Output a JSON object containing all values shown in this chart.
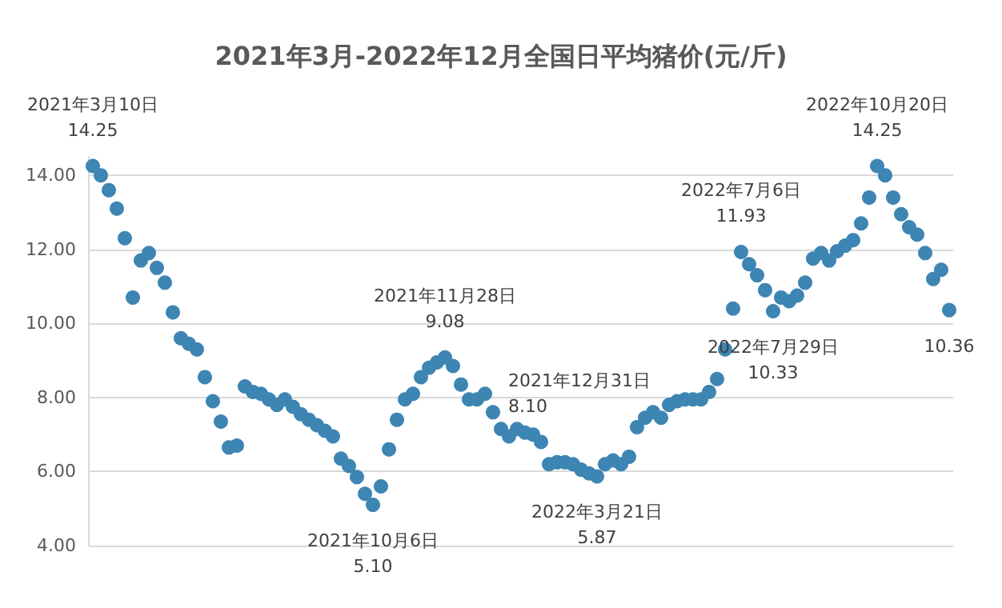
{
  "chart_data": {
    "type": "scatter",
    "title": "2021年3月-2022年12月全国日平均猪价(元/斤)",
    "categories": [
      null,
      null,
      null,
      null,
      null,
      null,
      null,
      null,
      null,
      null,
      null,
      null,
      null,
      null,
      null,
      null,
      null,
      null,
      null,
      null,
      null,
      null,
      null,
      null,
      null,
      null,
      null,
      null,
      null,
      null,
      null,
      null,
      null,
      null,
      null,
      null,
      null,
      null,
      null,
      null,
      null,
      null,
      null,
      null,
      null,
      null,
      null,
      null,
      null,
      null,
      null,
      null,
      null,
      null,
      null,
      null,
      null,
      null,
      null,
      null,
      null,
      null,
      null,
      null,
      null,
      null,
      null,
      null,
      null,
      null,
      null,
      null,
      null,
      null,
      null,
      null,
      null,
      null,
      null,
      null,
      null,
      null,
      null,
      null,
      null,
      null,
      null,
      null,
      null,
      null,
      null,
      null,
      null,
      null,
      null,
      null,
      null,
      null,
      null,
      null,
      null,
      null,
      null,
      null,
      null,
      null,
      null,
      null
    ],
    "series": [
      {
        "color": "#3d85b3",
        "values": [
          14.25,
          14.0,
          13.6,
          13.1,
          12.3,
          10.7,
          11.7,
          11.9,
          11.5,
          11.1,
          10.3,
          9.6,
          9.45,
          9.3,
          8.55,
          7.9,
          7.35,
          6.65,
          6.7,
          8.3,
          8.15,
          8.1,
          7.95,
          7.8,
          7.95,
          7.75,
          7.55,
          7.4,
          7.25,
          7.1,
          6.95,
          6.35,
          6.15,
          5.85,
          5.4,
          5.1,
          5.6,
          6.6,
          7.4,
          7.95,
          8.1,
          8.55,
          8.8,
          8.95,
          9.08,
          8.85,
          8.35,
          7.95,
          7.95,
          8.1,
          7.6,
          7.15,
          6.95,
          7.15,
          7.05,
          7.0,
          6.8,
          6.2,
          6.25,
          6.25,
          6.2,
          6.05,
          5.95,
          5.87,
          6.2,
          6.3,
          6.2,
          6.4,
          7.2,
          7.45,
          7.6,
          7.45,
          7.8,
          7.9,
          7.95,
          7.95,
          7.95,
          8.15,
          8.5,
          9.3,
          10.4,
          11.93,
          11.6,
          11.3,
          10.9,
          10.33,
          10.7,
          10.6,
          10.75,
          11.1,
          11.75,
          11.9,
          11.7,
          11.95,
          12.1,
          12.25,
          12.7,
          13.4,
          14.25,
          14.0,
          13.4,
          12.95,
          12.6,
          12.4,
          11.9,
          11.2,
          11.45,
          10.36
        ],
        "value_labels": [
          "2021年3月10日\n14.25",
          null,
          null,
          null,
          null,
          null,
          null,
          null,
          null,
          null,
          null,
          null,
          null,
          null,
          null,
          null,
          null,
          null,
          null,
          null,
          null,
          null,
          null,
          null,
          null,
          null,
          null,
          null,
          null,
          null,
          null,
          null,
          null,
          null,
          null,
          "2021年10月6日\n5.10",
          null,
          null,
          null,
          null,
          null,
          null,
          null,
          null,
          "2021年11月28日\n9.08",
          null,
          null,
          null,
          null,
          "2021年12月31日\n8.10",
          null,
          null,
          null,
          null,
          null,
          null,
          null,
          null,
          null,
          null,
          null,
          null,
          null,
          "2022年3月21日\n5.87",
          null,
          null,
          null,
          null,
          null,
          null,
          null,
          null,
          null,
          null,
          null,
          null,
          null,
          null,
          null,
          null,
          null,
          "2022年7月6日\n11.93",
          null,
          null,
          null,
          "2022年7月29日\n10.33",
          null,
          null,
          null,
          null,
          null,
          null,
          null,
          null,
          null,
          null,
          null,
          null,
          "2022年10月20日\n14.25",
          null,
          null,
          null,
          null,
          null,
          null,
          null,
          null,
          "10.36"
        ]
      }
    ],
    "ylim": [
      4,
      14.5
    ],
    "yticks": [
      {
        "value": 4,
        "label": "4.00"
      },
      {
        "value": 6,
        "label": "6.00"
      },
      {
        "value": 8,
        "label": "8.00"
      },
      {
        "value": 10,
        "label": "10.00"
      },
      {
        "value": 12,
        "label": "12.00"
      },
      {
        "value": 14,
        "label": "14.00"
      }
    ],
    "grid": "y",
    "marker": "circle",
    "tick_labels": "y"
  }
}
